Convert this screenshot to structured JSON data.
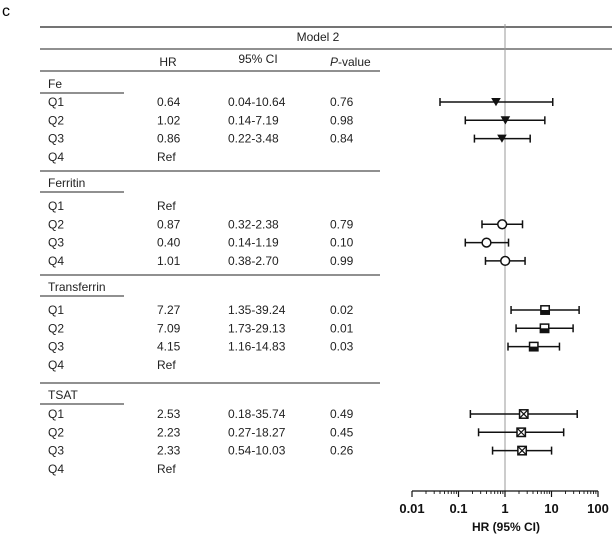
{
  "panel_label": "c",
  "chart_data": {
    "type": "forest",
    "title": "Model 2",
    "columns": {
      "hr": "HR",
      "ci": "95% CI",
      "p_prefix": "P",
      "p_suffix": "-value"
    },
    "xlabel": "HR (95% CI)",
    "xscale": "log",
    "xlim": [
      0.01,
      100
    ],
    "xticks": [
      0.01,
      0.1,
      1,
      10,
      100
    ],
    "xtick_labels": [
      "0.01",
      "0.1",
      "1",
      "10",
      "100"
    ],
    "reference_line": 1,
    "groups": [
      {
        "name": "Fe",
        "marker": "triangle-down-filled",
        "rows": [
          {
            "label": "Q1",
            "hr_text": "0.64",
            "ci_text": "0.04-10.64",
            "p": "0.76",
            "hr": 0.64,
            "lo": 0.04,
            "hi": 10.64
          },
          {
            "label": "Q2",
            "hr_text": "1.02",
            "ci_text": "0.14-7.19",
            "p": "0.98",
            "hr": 1.02,
            "lo": 0.14,
            "hi": 7.19
          },
          {
            "label": "Q3",
            "hr_text": "0.86",
            "ci_text": "0.22-3.48",
            "p": "0.84",
            "hr": 0.86,
            "lo": 0.22,
            "hi": 3.48
          },
          {
            "label": "Q4",
            "hr_text": "Ref",
            "ci_text": "",
            "p": ""
          }
        ]
      },
      {
        "name": "Ferritin",
        "marker": "circle-open",
        "rows": [
          {
            "label": "Q1",
            "hr_text": "Ref",
            "ci_text": "",
            "p": ""
          },
          {
            "label": "Q2",
            "hr_text": "0.87",
            "ci_text": "0.32-2.38",
            "p": "0.79",
            "hr": 0.87,
            "lo": 0.32,
            "hi": 2.38
          },
          {
            "label": "Q3",
            "hr_text": "0.40",
            "ci_text": "0.14-1.19",
            "p": "0.10",
            "hr": 0.4,
            "lo": 0.14,
            "hi": 1.19
          },
          {
            "label": "Q4",
            "hr_text": "1.01",
            "ci_text": "0.38-2.70",
            "p": "0.99",
            "hr": 1.01,
            "lo": 0.38,
            "hi": 2.7
          }
        ]
      },
      {
        "name": "Transferrin",
        "marker": "square-half",
        "rows": [
          {
            "label": "Q1",
            "hr_text": "7.27",
            "ci_text": "1.35-39.24",
            "p": "0.02",
            "hr": 7.27,
            "lo": 1.35,
            "hi": 39.24
          },
          {
            "label": "Q2",
            "hr_text": "7.09",
            "ci_text": "1.73-29.13",
            "p": "0.01",
            "hr": 7.09,
            "lo": 1.73,
            "hi": 29.13
          },
          {
            "label": "Q3",
            "hr_text": "4.15",
            "ci_text": "1.16-14.83",
            "p": "0.03",
            "hr": 4.15,
            "lo": 1.16,
            "hi": 14.83
          },
          {
            "label": "Q4",
            "hr_text": "Ref",
            "ci_text": "",
            "p": ""
          }
        ]
      },
      {
        "name": "TSAT",
        "marker": "square-cross",
        "rows": [
          {
            "label": "Q1",
            "hr_text": "2.53",
            "ci_text": "0.18-35.74",
            "p": "0.49",
            "hr": 2.53,
            "lo": 0.18,
            "hi": 35.74
          },
          {
            "label": "Q2",
            "hr_text": "2.23",
            "ci_text": "0.27-18.27",
            "p": "0.45",
            "hr": 2.23,
            "lo": 0.27,
            "hi": 18.27
          },
          {
            "label": "Q3",
            "hr_text": "2.33",
            "ci_text": "0.54-10.03",
            "p": "0.26",
            "hr": 2.33,
            "lo": 0.54,
            "hi": 10.03
          },
          {
            "label": "Q4",
            "hr_text": "Ref",
            "ci_text": "",
            "p": ""
          }
        ]
      }
    ]
  }
}
